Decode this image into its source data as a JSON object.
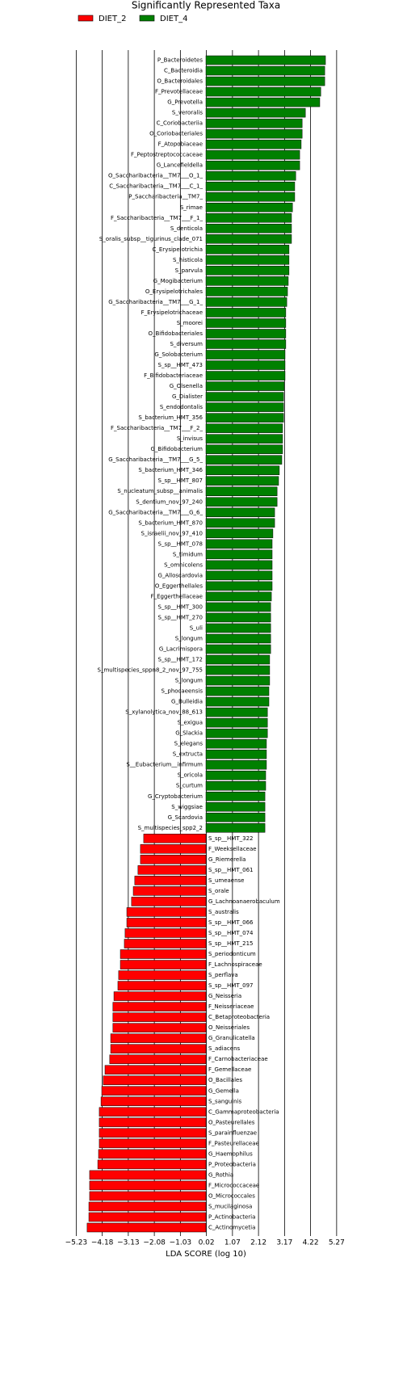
{
  "chart_data": {
    "type": "lda_bar",
    "title": "Significantly Represented Taxa",
    "x_label": "LDA SCORE (log 10)",
    "categories": [
      "P_Bacteroidetes",
      "C_Bacteroidia",
      "O_Bacteroidales",
      "F_Prevotellaceae",
      "G_Prevotella",
      "S_veroralis",
      "C_Coriobacteriia",
      "O_Coriobacteriales",
      "F_Atopobiaceae",
      "F_Peptostreptococcaceae",
      "G_Lancefieldella",
      "O_Saccharibacteria__TM7___O_1_",
      "C_Saccharibacteria__TM7___C_1_",
      "P_Saccharibacteria__TM7_",
      "S_rimae",
      "F_Saccharibacteria__TM7___F_1_",
      "S_denticola",
      "S_oralis_subsp__tigurinus_clade_071",
      "C_Erysipelotrichia",
      "S_histicola",
      "S_parvula",
      "G_Mogibacterium",
      "O_Erysipelotrichales",
      "G_Saccharibacteria__TM7___G_1_",
      "F_Erysipelotrichaceae",
      "S_moorei",
      "O_Bifidobacteriales",
      "S_diversum",
      "G_Solobacterium",
      "S_sp__HMT_473",
      "F_Bifidobacteriaceae",
      "G_Olsenella",
      "G_Dialister",
      "S_endodontalis",
      "S_bacterium_HMT_356",
      "F_Saccharibacteria__TM7___F_2_",
      "S_invisus",
      "G_Bifidobacterium",
      "G_Saccharibacteria__TM7___G_5_",
      "S_bacterium_HMT_346",
      "S_sp__HMT_807",
      "S_nucleatum_subsp__animalis",
      "S_dentium_nov_97_240",
      "G_Saccharibacteria__TM7___G_6_",
      "S_bacterium_HMT_870",
      "S_israelii_nov_97_410",
      "S_sp__HMT_078",
      "S_timidum",
      "S_omnicolens",
      "G_Alloscardovia",
      "O_Eggerthellales",
      "F_Eggerthellaceae",
      "S_sp__HMT_300",
      "S_sp__HMT_270",
      "S_uli",
      "S_longum",
      "G_Lacrimispora",
      "S_sp__HMT_172",
      "S_multispecies_sppn8_2_nov_97_755",
      "S_longum",
      "S_phocaeensis",
      "G_Bulleidia",
      "S_xylanolytica_nov_88_613",
      "S_exigua",
      "G_Slackia",
      "S_elegans",
      "S_extructa",
      "S__Eubacterium__infirmum",
      "S_oricola",
      "S_curtum",
      "G_Cryptobacterium",
      "S_wiggsiae",
      "G_Scardovia",
      "S_multispecies_spp2_2",
      "S_sp__HMT_322",
      "F_Weeksellaceae",
      "G_Riemerella",
      "S_sp__HMT_061",
      "S_umeaense",
      "S_orale",
      "G_Lachnoanaerobaculum",
      "S_australis",
      "S_sp__HMT_066",
      "S_sp__HMT_074",
      "S_sp__HMT_215",
      "S_periodonticum",
      "F_Lachnospiraceae",
      "S_perflava",
      "S_sp__HMT_097",
      "G_Neisseria",
      "F_Neisseriaceae",
      "C_Betaproteobacteria",
      "O_Neisseriales",
      "G_Granulicatella",
      "S_adiacens",
      "F_Carnobacteriaceae",
      "F_Gemellaceae",
      "O_Bacillales",
      "G_Gemella",
      "S_sanguinis",
      "C_Gammaproteobacteria",
      "O_Pasteurellales",
      "S_parainfluenzae",
      "F_Pasteurellaceae",
      "G_Haemophilus",
      "P_Proteobacteria",
      "G_Rothia",
      "F_Micrococcaceae",
      "O_Micrococcales",
      "S_mucilaginosa",
      "P_Actinobacteria",
      "C_Actinomycetia"
    ],
    "series": [
      {
        "name": "DIET_2",
        "color": "#ff0000",
        "values": [
          null,
          null,
          null,
          null,
          null,
          null,
          null,
          null,
          null,
          null,
          null,
          null,
          null,
          null,
          null,
          null,
          null,
          null,
          null,
          null,
          null,
          null,
          null,
          null,
          null,
          null,
          null,
          null,
          null,
          null,
          null,
          null,
          null,
          null,
          null,
          null,
          null,
          null,
          null,
          null,
          null,
          null,
          null,
          null,
          null,
          null,
          null,
          null,
          null,
          null,
          null,
          null,
          null,
          null,
          null,
          null,
          null,
          null,
          null,
          null,
          null,
          null,
          null,
          null,
          null,
          null,
          null,
          null,
          null,
          null,
          null,
          null,
          null,
          null,
          -2.51,
          -2.64,
          -2.64,
          -2.74,
          -2.87,
          -2.93,
          -3.0,
          -3.19,
          -3.19,
          -3.26,
          -3.29,
          -3.45,
          -3.45,
          -3.52,
          -3.55,
          -3.71,
          -3.75,
          -3.75,
          -3.75,
          -3.84,
          -3.84,
          -3.88,
          -4.07,
          -4.14,
          -4.2,
          -4.23,
          -4.3,
          -4.3,
          -4.3,
          -4.3,
          -4.33,
          -4.36,
          -4.69,
          -4.69,
          -4.69,
          -4.72,
          -4.72,
          -4.79
        ]
      },
      {
        "name": "DIET_4",
        "color": "#008000",
        "values": [
          4.82,
          4.79,
          4.79,
          4.63,
          4.59,
          4.01,
          3.88,
          3.88,
          3.84,
          3.78,
          3.78,
          3.62,
          3.58,
          3.58,
          3.49,
          3.45,
          3.45,
          3.45,
          3.35,
          3.35,
          3.35,
          3.32,
          3.29,
          3.26,
          3.22,
          3.22,
          3.22,
          3.22,
          3.19,
          3.19,
          3.19,
          3.16,
          3.13,
          3.13,
          3.13,
          3.09,
          3.09,
          3.09,
          3.06,
          2.96,
          2.93,
          2.87,
          2.87,
          2.77,
          2.77,
          2.7,
          2.67,
          2.67,
          2.67,
          2.67,
          2.67,
          2.64,
          2.61,
          2.61,
          2.61,
          2.61,
          2.61,
          2.57,
          2.57,
          2.57,
          2.54,
          2.54,
          2.48,
          2.48,
          2.48,
          2.44,
          2.44,
          2.44,
          2.41,
          2.41,
          2.38,
          2.38,
          2.38,
          2.38,
          null,
          null,
          null,
          null,
          null,
          null,
          null,
          null,
          null,
          null,
          null,
          null,
          null,
          null,
          null,
          null,
          null,
          null,
          null,
          null,
          null,
          null,
          null,
          null,
          null,
          null,
          null,
          null,
          null,
          null,
          null,
          null,
          null,
          null,
          null,
          null,
          null,
          null
        ]
      }
    ],
    "xlim": [
      -5.6,
      5.6
    ],
    "xticks": [
      {
        "value": -5.23,
        "label": "−5.23"
      },
      {
        "value": -4.18,
        "label": "−4.18"
      },
      {
        "value": -3.13,
        "label": "−3.13"
      },
      {
        "value": -2.08,
        "label": "−2.08"
      },
      {
        "value": -1.03,
        "label": "−1.03"
      },
      0.02,
      1.07,
      2.12,
      3.17,
      4.22,
      5.27
    ],
    "grid": true
  }
}
